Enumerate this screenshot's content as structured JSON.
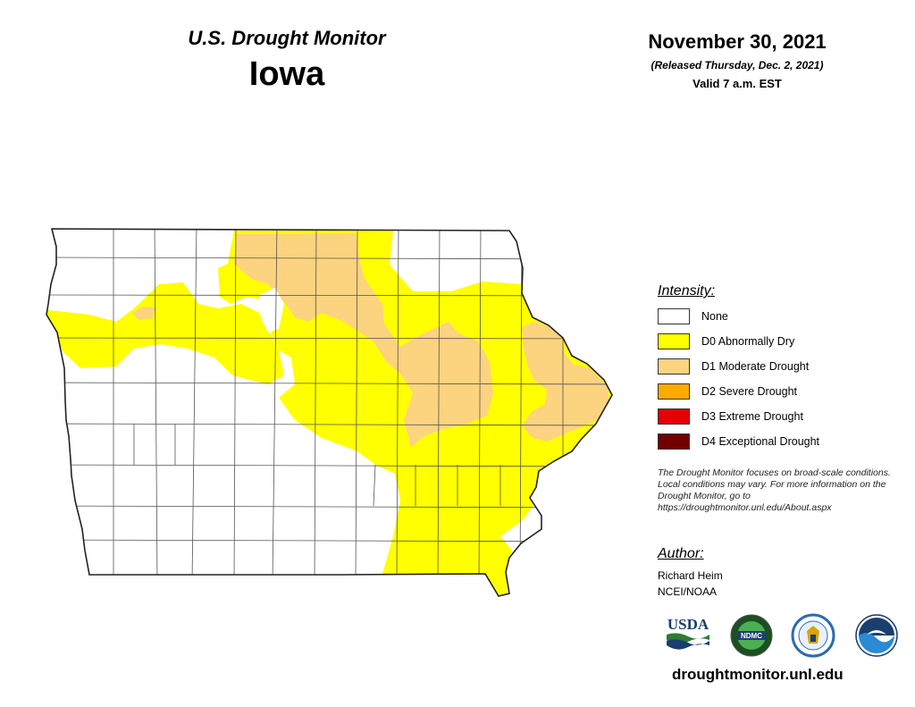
{
  "header": {
    "title": "U.S. Drought Monitor",
    "state": "Iowa",
    "date": "November 30, 2021",
    "released": "(Released Thursday, Dec. 2, 2021)",
    "valid": "Valid 7 a.m. EST"
  },
  "legend": {
    "title": "Intensity:",
    "items": [
      {
        "label": "None",
        "color": "#ffffff"
      },
      {
        "label": "D0 Abnormally Dry",
        "color": "#ffff00"
      },
      {
        "label": "D1 Moderate Drought",
        "color": "#fcd37f"
      },
      {
        "label": "D2 Severe Drought",
        "color": "#ffaa00"
      },
      {
        "label": "D3 Extreme Drought",
        "color": "#e60000"
      },
      {
        "label": "D4 Exceptional Drought",
        "color": "#730000"
      }
    ]
  },
  "disclaimer": "The Drought Monitor focuses on broad-scale conditions. Local conditions may vary. For more information on the Drought Monitor, go to https://droughtmonitor.unl.edu/About.aspx",
  "author": {
    "title": "Author:",
    "name": "Richard Heim",
    "org": "NCEI/NOAA"
  },
  "logos": {
    "usda": "USDA",
    "ndmc": "NDMC",
    "commerce": "commerce-seal-icon",
    "noaa": "noaa-icon"
  },
  "site": "droughtmonitor.unl.edu"
}
